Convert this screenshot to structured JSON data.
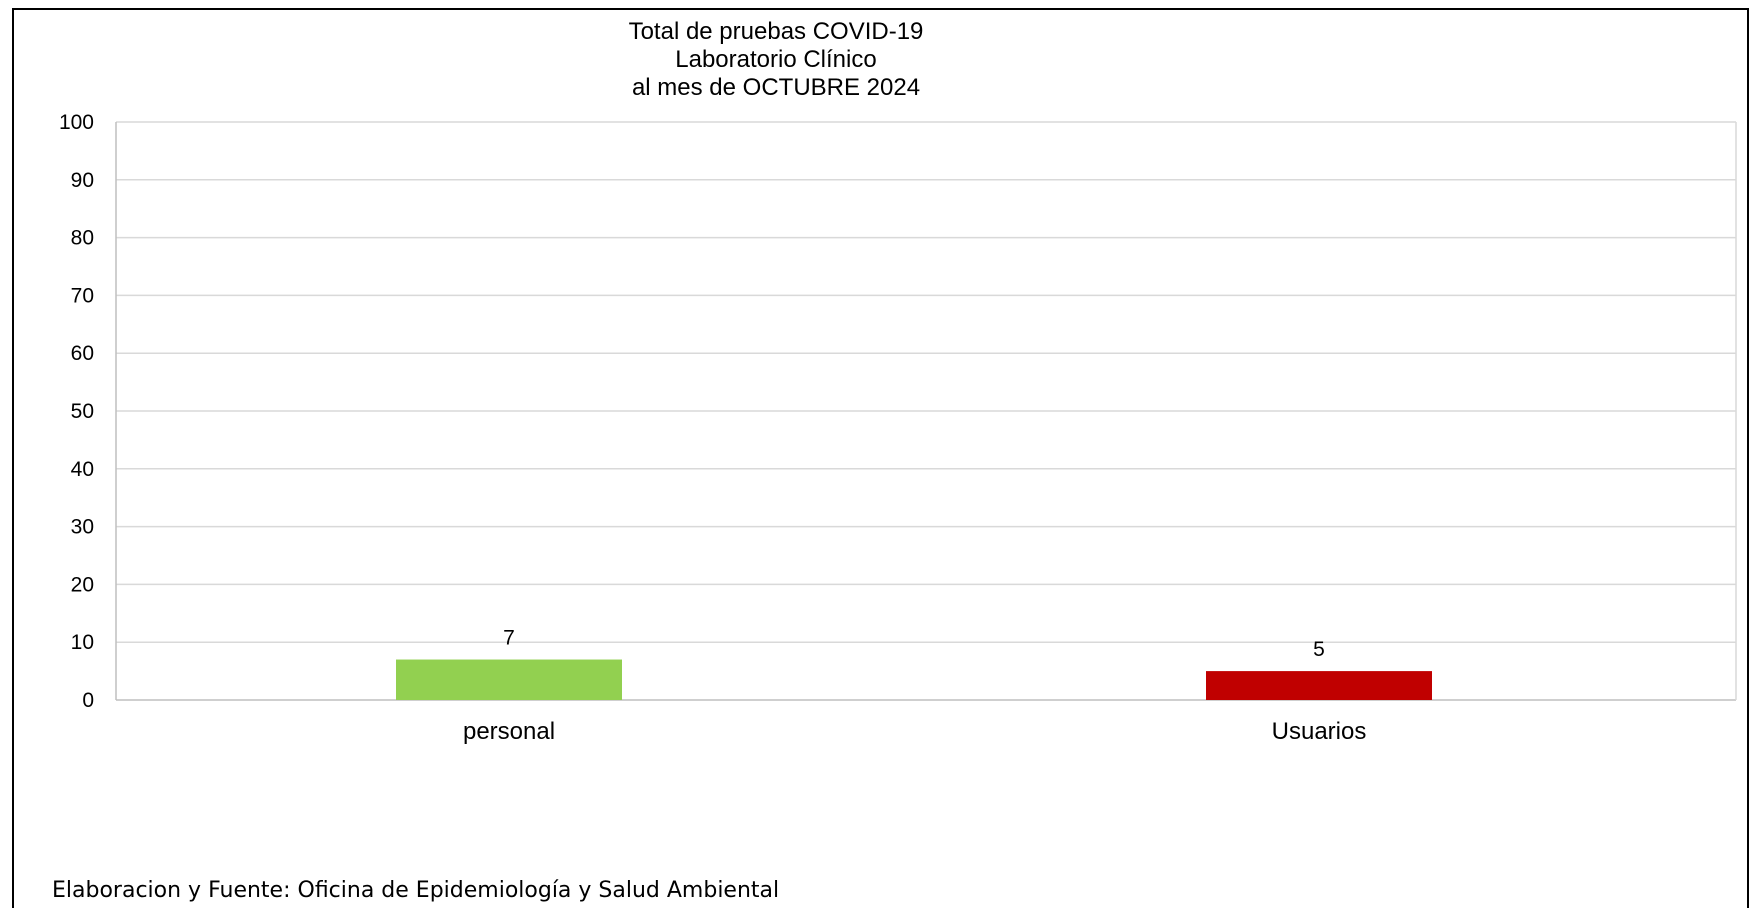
{
  "chart_data": {
    "type": "bar",
    "title_lines": [
      "Total de pruebas COVID-19",
      "Laboratorio Clínico",
      "al mes de  OCTUBRE 2024"
    ],
    "categories": [
      "personal",
      "Usuarios"
    ],
    "values": [
      7,
      5
    ],
    "data_labels": [
      "7",
      "5"
    ],
    "bar_colors": [
      "#92d050",
      "#c00000"
    ],
    "ylim": [
      0,
      100
    ],
    "yticks": [
      0,
      10,
      20,
      30,
      40,
      50,
      60,
      70,
      80,
      90,
      100
    ],
    "xlabel": "",
    "ylabel": "",
    "grid": true,
    "legend": "none"
  },
  "footer": {
    "source": "Elaboracion y Fuente: Oficina de Epidemiología y Salud Ambiental"
  },
  "colors": {
    "gridline": "#d9d9d9",
    "axis": "#bfbfbf"
  }
}
